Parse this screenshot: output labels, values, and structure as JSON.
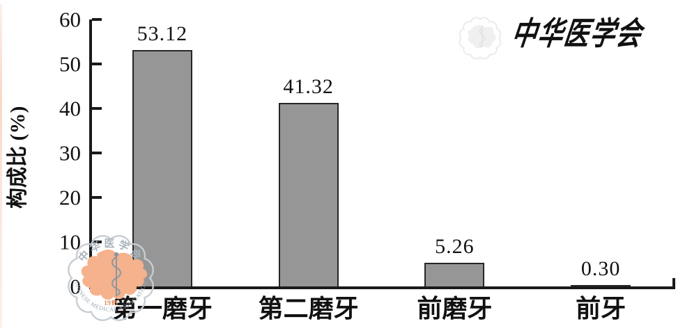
{
  "chart_data": {
    "type": "bar",
    "categories": [
      "第一磨牙",
      "第二磨牙",
      "前磨牙",
      "前牙"
    ],
    "values": [
      53.12,
      41.32,
      5.26,
      0.3
    ],
    "value_labels": [
      "53.12",
      "41.32",
      "5.26",
      "0.30"
    ],
    "title": "",
    "xlabel": "",
    "ylabel": "构成比 (%)",
    "ylim": [
      0,
      60
    ],
    "yticks": [
      0,
      10,
      20,
      30,
      40,
      50,
      60
    ],
    "grid": false,
    "legend": null,
    "bar_color": "#969696",
    "bar_border_color": "#262626",
    "axis_color": "#1a1a1a"
  },
  "watermarks": {
    "corner_logo": {
      "org_cn": "中华医学会",
      "org_en": "CHINESE MEDICAL ASSOCIATION",
      "year": "1915",
      "ring_color": "#c6cdd3",
      "map_color": "#f5b28c",
      "emblem_color": "#8b97a1",
      "cn_text_color": "#aab4bd",
      "en_text_color": "#9aa5ad",
      "year_color": "#e78f5f"
    },
    "ghost": {
      "text": "中华医学会",
      "color": "#e7e7e7"
    }
  }
}
